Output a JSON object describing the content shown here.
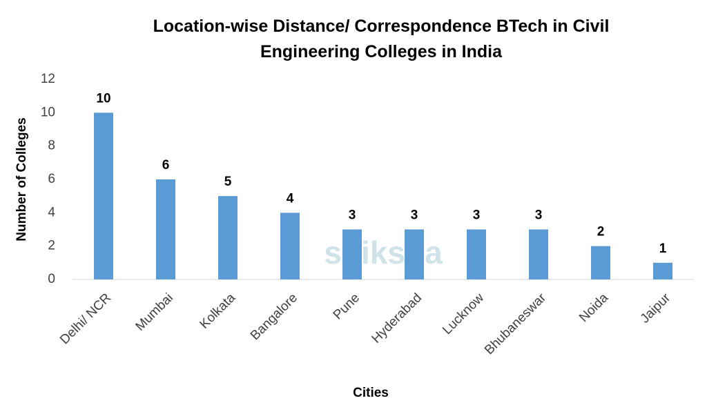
{
  "chart_data": {
    "type": "bar",
    "title": "Location-wise Distance/ Correspondence BTech in Civil Engineering Colleges in India",
    "x_label": "Cities",
    "y_label": "Number of Colleges",
    "watermark": "shiksha",
    "categories": [
      "Delhi/ NCR",
      "Mumbai",
      "Kolkata",
      "Bangalore",
      "Pune",
      "Hyderabad",
      "Lucknow",
      "Bhubaneswar",
      "Noida",
      "Jaipur"
    ],
    "values": [
      10,
      6,
      5,
      4,
      3,
      3,
      3,
      3,
      2,
      1
    ],
    "color": "#5b9bd5",
    "ylim": [
      0,
      12
    ],
    "yticks": [
      0,
      2,
      4,
      6,
      8,
      10,
      12
    ],
    "grid": false
  }
}
